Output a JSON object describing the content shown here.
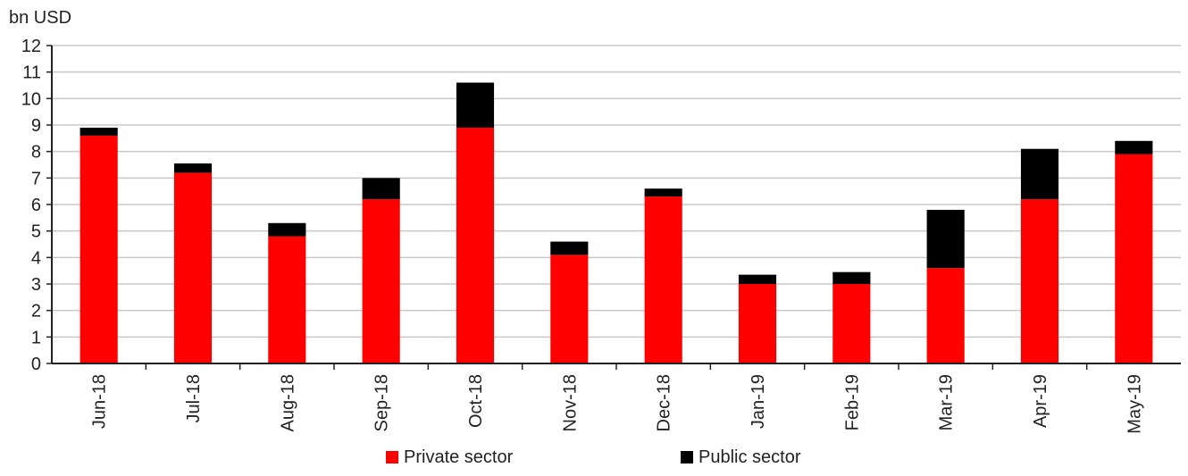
{
  "chart_data": {
    "type": "bar",
    "stacked": true,
    "unit_label": "bn USD",
    "categories": [
      "Jun-18",
      "Jul-18",
      "Aug-18",
      "Sep-18",
      "Oct-18",
      "Nov-18",
      "Dec-18",
      "Jan-19",
      "Feb-19",
      "Mar-19",
      "Apr-19",
      "May-19"
    ],
    "series": [
      {
        "name": "Private sector",
        "color": "#ff0000",
        "values": [
          8.6,
          7.2,
          4.8,
          6.2,
          8.9,
          4.1,
          6.3,
          3.0,
          3.0,
          3.6,
          6.2,
          7.9
        ]
      },
      {
        "name": "Public sector",
        "color": "#000000",
        "values": [
          0.3,
          0.35,
          0.5,
          0.8,
          1.7,
          0.5,
          0.3,
          0.35,
          0.45,
          2.2,
          1.9,
          0.5
        ]
      }
    ],
    "ylim": [
      0,
      12
    ],
    "yticks": [
      0,
      1,
      2,
      3,
      4,
      5,
      6,
      7,
      8,
      9,
      10,
      11,
      12
    ],
    "grid": true,
    "legend": "bottom-center"
  }
}
